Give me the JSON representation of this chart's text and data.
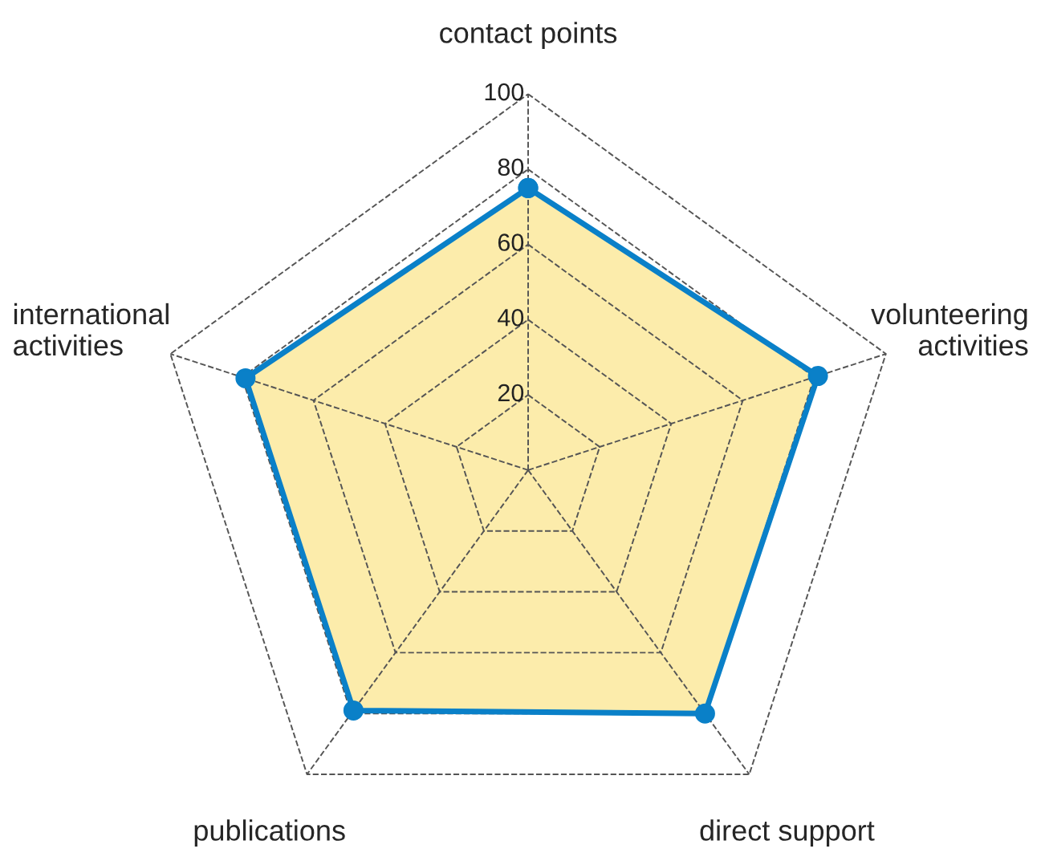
{
  "chart_data": {
    "type": "radar",
    "categories": [
      "contact points",
      "volunteering activities",
      "direct support",
      "publications",
      "international activities"
    ],
    "series": [
      {
        "color": "#0a80c8",
        "values": [
          75,
          81,
          80,
          79,
          79
        ]
      }
    ],
    "ylim": [
      0,
      100
    ],
    "yticks": [
      20,
      40,
      60,
      80,
      100
    ],
    "grid": true,
    "marker": "circle",
    "line_style": "solid"
  }
}
